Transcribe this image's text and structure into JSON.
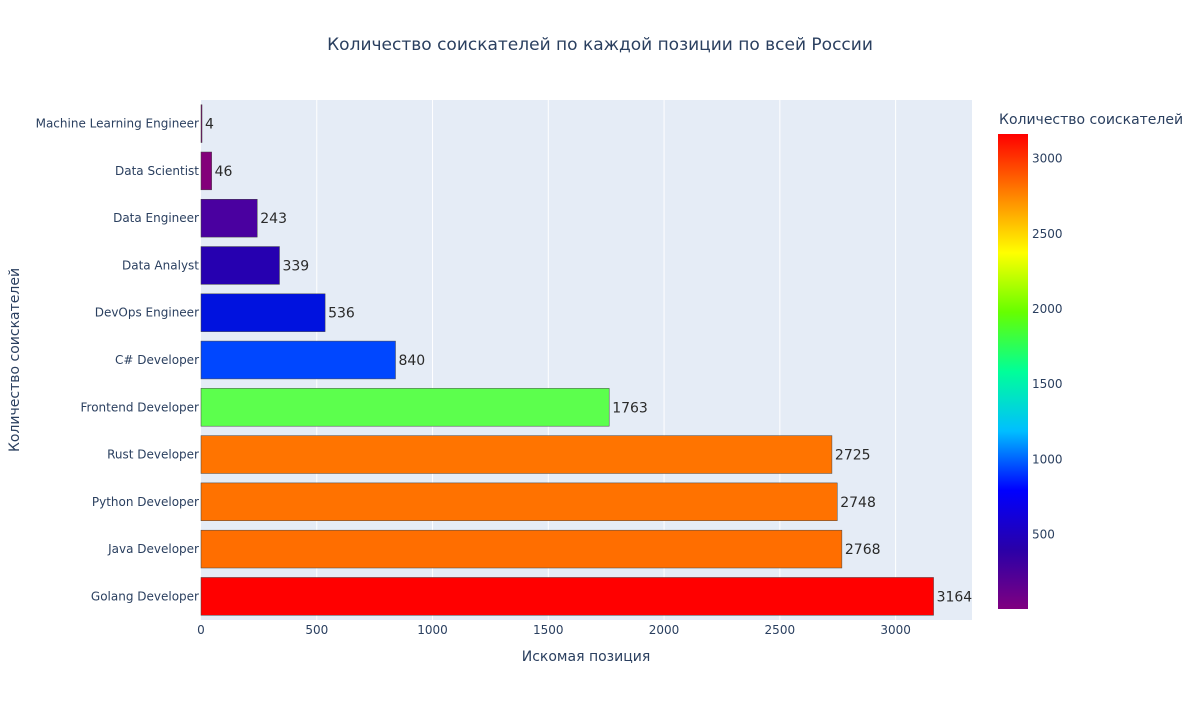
{
  "chart_data": {
    "type": "bar",
    "orientation": "horizontal",
    "title": "Количество соискателей по каждой позиции по всей России",
    "xlabel": "Искомая позиция",
    "ylabel": "Количество соискателей",
    "categories": [
      "Machine Learning Engineer",
      "Data Scientist",
      "Data Engineer",
      "Data Analyst",
      "DevOps Engineer",
      "C# Developer",
      "Frontend Developer",
      "Rust Developer",
      "Python Developer",
      "Java Developer",
      "Golang Developer"
    ],
    "values": [
      4,
      46,
      243,
      339,
      536,
      840,
      1763,
      2725,
      2748,
      2768,
      3164
    ],
    "xlim": [
      0,
      3330
    ],
    "xticks": [
      0,
      500,
      1000,
      1500,
      2000,
      2500,
      3000
    ],
    "grid": true,
    "colorbar": {
      "title": "Количество соискателей",
      "range": [
        4,
        3164
      ],
      "ticks": [
        500,
        1000,
        1500,
        2000,
        2500,
        3000
      ],
      "colorscale": [
        "#800080",
        "#2a00a8",
        "#0000ff",
        "#00bfff",
        "#00ff99",
        "#66ff00",
        "#ffff00",
        "#ff8000",
        "#ff0000"
      ]
    },
    "bar_colors": [
      "#7d0070",
      "#83007a",
      "#4a00a0",
      "#2600b0",
      "#0012df",
      "#0047ff",
      "#5cff4d",
      "#ff7400",
      "#ff7200",
      "#ff6e00",
      "#ff0000"
    ],
    "plot_background": "#e5ecf6"
  }
}
